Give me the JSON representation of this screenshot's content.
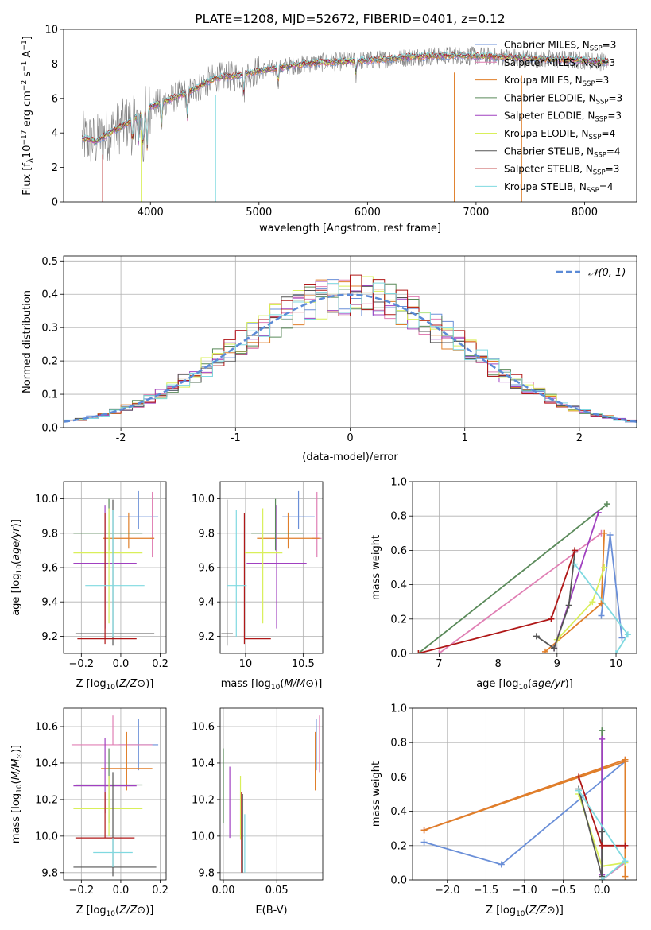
{
  "colors": {
    "miles_chabrier": "#6a8fd8",
    "miles_salpeter": "#e07fb4",
    "miles_kroupa": "#e07f2a",
    "elodie_chabrier": "#5a8a5a",
    "elodie_salpeter": "#a040c0",
    "elodie_kroupa": "#d9ef5a",
    "stelib_chabrier": "#555555",
    "stelib_salpeter": "#b01818",
    "stelib_kroupa": "#7fd9e0",
    "normal": "#5b8ad6",
    "observed": "#808080"
  },
  "chart_data": [
    {
      "id": "spectrum",
      "type": "line",
      "title": "PLATE=1208, MJD=52672, FIBERID=0401, z=0.12",
      "xlabel": "wavelength [Angstrom, rest frame]",
      "ylabel": "Flux [f_λ10^-17 erg cm^-2 s^-1 A^-1]",
      "xlim": [
        3200,
        8480
      ],
      "ylim": [
        0,
        10
      ],
      "xticks": [
        4000,
        5000,
        6000,
        7000,
        8000
      ],
      "yticks": [
        0,
        2,
        4,
        6,
        8,
        10
      ],
      "grid": false,
      "legend_position": "top-right",
      "legend": [
        "Chabrier MILES, N_SSP=3",
        "Salpeter MILES, N_SSP=3",
        "Kroupa MILES, N_SSP=3",
        "Chabrier ELODIE, N_SSP=3",
        "Salpeter ELODIE, N_SSP=3",
        "Kroupa ELODIE, N_SSP=4",
        "Chabrier STELIB, N_SSP=4",
        "Salpeter STELIB, N_SSP=3",
        "Kroupa STELIB, N_SSP=4"
      ],
      "continuum": {
        "x": [
          3370,
          3500,
          3650,
          3800,
          4000,
          4200,
          4400,
          4600,
          4800,
          5000,
          5300,
          5600,
          6000,
          6400,
          6800,
          7200,
          7600,
          8000,
          8220
        ],
        "y": [
          3.7,
          3.5,
          4.1,
          4.6,
          5.5,
          6.0,
          6.5,
          7.2,
          7.3,
          7.6,
          7.9,
          8.1,
          8.2,
          8.4,
          8.5,
          8.4,
          8.3,
          8.2,
          8.1
        ]
      }
    },
    {
      "id": "residuals",
      "type": "histogram",
      "xlabel": "(data-model)/error",
      "ylabel": "Normed distribution",
      "xlim": [
        -2.5,
        2.5
      ],
      "ylim": [
        0,
        0.515
      ],
      "xticks": [
        -2,
        -1,
        0,
        1,
        2
      ],
      "yticks": [
        0.0,
        0.1,
        0.2,
        0.3,
        0.4,
        0.5
      ],
      "grid": true,
      "legend_position": "top-right",
      "legend": [
        "𝒩(0, 1)"
      ],
      "bin_width": 0.1
    },
    {
      "id": "age-Z",
      "type": "errorbar",
      "xlabel": "Z [log10(Z/Z⊙)]",
      "ylabel": "age  [log10(age/yr)]",
      "xlim": [
        -0.29,
        0.23
      ],
      "ylim": [
        9.1,
        10.1
      ],
      "xticks": [
        -0.2,
        0.0,
        0.2
      ],
      "xtick_labels": [
        "−0.2",
        "0.0",
        "0.2"
      ],
      "yticks": [
        9.2,
        9.4,
        9.6,
        9.8,
        10.0
      ],
      "grid": true,
      "points": [
        {
          "model": "miles_chabrier",
          "x": 0.09,
          "xerr": [
            0.1,
            0.1
          ],
          "y": 9.895,
          "yerr": [
            0.07,
            0.15
          ]
        },
        {
          "model": "miles_salpeter",
          "x": 0.16,
          "xerr": [
            0.01,
            0.01
          ],
          "y": 9.77,
          "yerr": [
            0.11,
            0.27
          ]
        },
        {
          "model": "miles_kroupa",
          "x": 0.04,
          "xerr": [
            0.13,
            0.13
          ],
          "y": 9.77,
          "yerr": [
            0.06,
            0.15
          ]
        },
        {
          "model": "elodie_chabrier",
          "x": -0.06,
          "xerr": [
            0.18,
            0.17
          ],
          "y": 9.8,
          "yerr": [
            0.1,
            0.2
          ]
        },
        {
          "model": "elodie_salpeter",
          "x": -0.08,
          "xerr": [
            0.16,
            0.16
          ],
          "y": 9.625,
          "yerr": [
            0.38,
            0.34
          ]
        },
        {
          "model": "elodie_kroupa",
          "x": -0.06,
          "xerr": [
            0.18,
            0.17
          ],
          "y": 9.685,
          "yerr": [
            0.41,
            0.26
          ]
        },
        {
          "model": "stelib_chabrier",
          "x": -0.04,
          "xerr": [
            0.19,
            0.21
          ],
          "y": 9.215,
          "yerr": [
            0.07,
            0.78
          ]
        },
        {
          "model": "stelib_salpeter",
          "x": -0.08,
          "xerr": [
            0.14,
            0.16
          ],
          "y": 9.185,
          "yerr": [
            0.03,
            0.73
          ]
        },
        {
          "model": "stelib_kroupa",
          "x": -0.04,
          "xerr": [
            0.14,
            0.16
          ],
          "y": 9.495,
          "yerr": [
            0.3,
            0.44
          ]
        }
      ]
    },
    {
      "id": "age-mass",
      "type": "errorbar",
      "xlabel": "mass [log10(M/M⊙)]",
      "xlim": [
        9.78,
        10.67
      ],
      "ylim": [
        9.1,
        10.1
      ],
      "xticks": [
        10.0,
        10.5
      ],
      "yticks": [
        9.2,
        9.4,
        9.6,
        9.8,
        10.0
      ],
      "grid": true,
      "points": [
        {
          "model": "miles_chabrier",
          "x": 10.46,
          "xerr": [
            0.14,
            0.14
          ],
          "y": 9.895,
          "yerr": [
            0.07,
            0.15
          ]
        },
        {
          "model": "miles_salpeter",
          "x": 10.62,
          "xerr": [
            0.04,
            0.04
          ],
          "y": 9.77,
          "yerr": [
            0.11,
            0.27
          ]
        },
        {
          "model": "miles_kroupa",
          "x": 10.37,
          "xerr": [
            0.27,
            0.27
          ],
          "y": 9.77,
          "yerr": [
            0.06,
            0.15
          ]
        },
        {
          "model": "elodie_chabrier",
          "x": 10.26,
          "xerr": [
            0.21,
            0.24
          ],
          "y": 9.8,
          "yerr": [
            0.1,
            0.2
          ]
        },
        {
          "model": "elodie_salpeter",
          "x": 10.27,
          "xerr": [
            0.26,
            0.26
          ],
          "y": 9.625,
          "yerr": [
            0.38,
            0.34
          ]
        },
        {
          "model": "elodie_kroupa",
          "x": 10.15,
          "xerr": [
            0.16,
            0.17
          ],
          "y": 9.685,
          "yerr": [
            0.41,
            0.26
          ]
        },
        {
          "model": "stelib_chabrier",
          "x": 9.84,
          "xerr": [
            0.05,
            0.05
          ],
          "y": 9.215,
          "yerr": [
            0.07,
            0.78
          ]
        },
        {
          "model": "stelib_salpeter",
          "x": 9.99,
          "xerr": [
            0.0,
            0.23
          ],
          "y": 9.185,
          "yerr": [
            0.03,
            0.73
          ]
        },
        {
          "model": "stelib_kroupa",
          "x": 9.92,
          "xerr": [
            0.08,
            0.09
          ],
          "y": 9.495,
          "yerr": [
            0.3,
            0.44
          ]
        }
      ]
    },
    {
      "id": "weight-age",
      "type": "line",
      "xlabel": "age  [log10(age/yr)]",
      "ylabel": "mass weight",
      "xlim": [
        6.55,
        10.35
      ],
      "ylim": [
        0.0,
        1.0
      ],
      "xticks": [
        7,
        8,
        9,
        10
      ],
      "yticks": [
        0.0,
        0.2,
        0.4,
        0.6,
        0.8,
        1.0
      ],
      "grid": true,
      "series": [
        {
          "model": "miles_chabrier",
          "x": [
            9.75,
            9.9,
            10.1
          ],
          "y": [
            0.22,
            0.69,
            0.09
          ]
        },
        {
          "model": "miles_salpeter",
          "x": [
            7.0,
            9.75
          ],
          "y": [
            0.0,
            0.7
          ]
        },
        {
          "model": "miles_kroupa",
          "x": [
            8.8,
            9.75,
            9.8
          ],
          "y": [
            0.01,
            0.29,
            0.7
          ]
        },
        {
          "model": "elodie_chabrier",
          "x": [
            6.65,
            9.85
          ],
          "y": [
            0.0,
            0.87
          ]
        },
        {
          "model": "elodie_salpeter",
          "x": [
            8.95,
            9.7
          ],
          "y": [
            0.03,
            0.82
          ]
        },
        {
          "model": "elodie_kroupa",
          "x": [
            9.0,
            9.6,
            9.8
          ],
          "y": [
            0.08,
            0.3,
            0.5
          ]
        },
        {
          "model": "stelib_chabrier",
          "x": [
            8.65,
            8.95,
            9.2,
            9.3
          ],
          "y": [
            0.1,
            0.03,
            0.28,
            0.59
          ]
        },
        {
          "model": "stelib_salpeter",
          "x": [
            6.65,
            8.9,
            9.3
          ],
          "y": [
            0.0,
            0.2,
            0.6
          ]
        },
        {
          "model": "stelib_kroupa",
          "x": [
            9.3,
            10.2,
            10.0
          ],
          "y": [
            0.52,
            0.11,
            0.0
          ]
        }
      ]
    },
    {
      "id": "mass-Z",
      "type": "errorbar",
      "xlabel": "Z [log10(Z/Z⊙)]",
      "ylabel": "mass [log10(M/M⊙)]",
      "xlim": [
        -0.29,
        0.23
      ],
      "ylim": [
        9.76,
        10.7
      ],
      "xticks": [
        -0.2,
        0.0,
        0.2
      ],
      "xtick_labels": [
        "−0.2",
        "0.0",
        "0.2"
      ],
      "yticks": [
        9.8,
        10.0,
        10.2,
        10.4,
        10.6
      ],
      "grid": true,
      "points": [
        {
          "model": "miles_chabrier",
          "x": 0.09,
          "xerr": [
            0.1,
            0.1
          ],
          "y": 10.5,
          "yerr": [
            0.14,
            0.14
          ]
        },
        {
          "model": "miles_salpeter",
          "x": -0.04,
          "xerr": [
            0.21,
            0.2
          ],
          "y": 10.5,
          "yerr": [
            0.0,
            0.16
          ]
        },
        {
          "model": "miles_kroupa",
          "x": 0.03,
          "xerr": [
            0.13,
            0.13
          ],
          "y": 10.37,
          "yerr": [
            0.12,
            0.2
          ]
        },
        {
          "model": "elodie_chabrier",
          "x": -0.06,
          "xerr": [
            0.17,
            0.17
          ],
          "y": 10.28,
          "yerr": [
            0.21,
            0.2
          ]
        },
        {
          "model": "elodie_salpeter",
          "x": -0.08,
          "xerr": [
            0.16,
            0.16
          ],
          "y": 10.275,
          "yerr": [
            0.15,
            0.26
          ]
        },
        {
          "model": "elodie_kroupa",
          "x": -0.06,
          "xerr": [
            0.18,
            0.17
          ],
          "y": 10.15,
          "yerr": [
            0.15,
            0.18
          ]
        },
        {
          "model": "stelib_chabrier",
          "x": -0.04,
          "xerr": [
            0.2,
            0.22
          ],
          "y": 9.83,
          "yerr": [
            0.05,
            0.52
          ]
        },
        {
          "model": "stelib_salpeter",
          "x": -0.08,
          "xerr": [
            0.15,
            0.15
          ],
          "y": 9.99,
          "yerr": [
            0.0,
            0.25
          ]
        },
        {
          "model": "stelib_kroupa",
          "x": -0.04,
          "xerr": [
            0.1,
            0.1
          ],
          "y": 9.91,
          "yerr": [
            0.08,
            0.08
          ]
        }
      ]
    },
    {
      "id": "mass-ebv",
      "type": "errorbar",
      "xlabel": "E(B-V)",
      "xlim": [
        -0.003,
        0.093
      ],
      "ylim": [
        9.76,
        10.7
      ],
      "xticks": [
        0.0,
        0.05
      ],
      "xtick_labels": [
        "0.00",
        "0.05"
      ],
      "yticks": [
        9.8,
        10.0,
        10.2,
        10.4,
        10.6
      ],
      "grid": true,
      "points": [
        {
          "model": "miles_chabrier",
          "x": 0.087,
          "y": 10.5,
          "yerr": [
            0.14,
            0.14
          ]
        },
        {
          "model": "miles_salpeter",
          "x": 0.09,
          "y": 10.5,
          "yerr": [
            0.15,
            0.16
          ]
        },
        {
          "model": "miles_kroupa",
          "x": 0.086,
          "y": 10.37,
          "yerr": [
            0.12,
            0.2
          ]
        },
        {
          "model": "elodie_chabrier",
          "x": 0.0,
          "y": 10.28,
          "yerr": [
            0.21,
            0.2
          ]
        },
        {
          "model": "elodie_salpeter",
          "x": 0.006,
          "y": 10.18,
          "yerr": [
            0.19,
            0.2
          ]
        },
        {
          "model": "elodie_kroupa",
          "x": 0.016,
          "y": 10.13,
          "yerr": [
            0.15,
            0.2
          ]
        },
        {
          "model": "stelib_chabrier",
          "x": 0.018,
          "y": 10.0,
          "yerr": [
            0.2,
            0.23
          ]
        },
        {
          "model": "stelib_salpeter",
          "x": 0.017,
          "y": 10.0,
          "yerr": [
            0.2,
            0.24
          ]
        },
        {
          "model": "stelib_kroupa",
          "x": 0.02,
          "y": 9.9,
          "yerr": [
            0.1,
            0.22
          ]
        }
      ]
    },
    {
      "id": "weight-Z",
      "type": "line",
      "xlabel": "Z [log10(Z/Z⊙)]",
      "ylabel": "mass weight",
      "xlim": [
        -2.45,
        0.45
      ],
      "ylim": [
        0.0,
        1.0
      ],
      "xticks": [
        -2.0,
        -1.5,
        -1.0,
        -0.5,
        0.0
      ],
      "xtick_labels": [
        "−2.0",
        "−1.5",
        "−1.0",
        "−0.5",
        "0.0"
      ],
      "yticks": [
        0.0,
        0.2,
        0.4,
        0.6,
        0.8,
        1.0
      ],
      "grid": true,
      "series": [
        {
          "model": "miles_chabrier",
          "x": [
            -2.3,
            -1.3,
            0.3
          ],
          "y": [
            0.22,
            0.09,
            0.69
          ]
        },
        {
          "model": "miles_salpeter",
          "x": [
            -2.3,
            0.3,
            0.3,
            0.0
          ],
          "y": [
            0.29,
            0.7,
            0.1,
            0.0
          ]
        },
        {
          "model": "miles_kroupa",
          "x": [
            0.3,
            0.3,
            -2.3,
            0.3
          ],
          "y": [
            0.02,
            0.69,
            0.29,
            0.7
          ]
        },
        {
          "model": "elodie_chabrier",
          "x": [
            0.0,
            0.0
          ],
          "y": [
            0.0,
            0.87
          ]
        },
        {
          "model": "elodie_salpeter",
          "x": [
            0.0,
            0.0
          ],
          "y": [
            0.82,
            0.03
          ]
        },
        {
          "model": "elodie_kroupa",
          "x": [
            -0.3,
            0.0,
            0.3
          ],
          "y": [
            0.5,
            0.08,
            0.1
          ]
        },
        {
          "model": "stelib_chabrier",
          "x": [
            -0.3,
            0.0,
            0.0
          ],
          "y": [
            0.53,
            0.02,
            0.28
          ]
        },
        {
          "model": "stelib_salpeter",
          "x": [
            0.0,
            -0.3,
            0.0,
            0.3
          ],
          "y": [
            0.2,
            0.6,
            0.2,
            0.2
          ]
        },
        {
          "model": "stelib_kroupa",
          "x": [
            -0.3,
            0.3,
            0.0
          ],
          "y": [
            0.52,
            0.11,
            0.0
          ]
        }
      ]
    }
  ]
}
